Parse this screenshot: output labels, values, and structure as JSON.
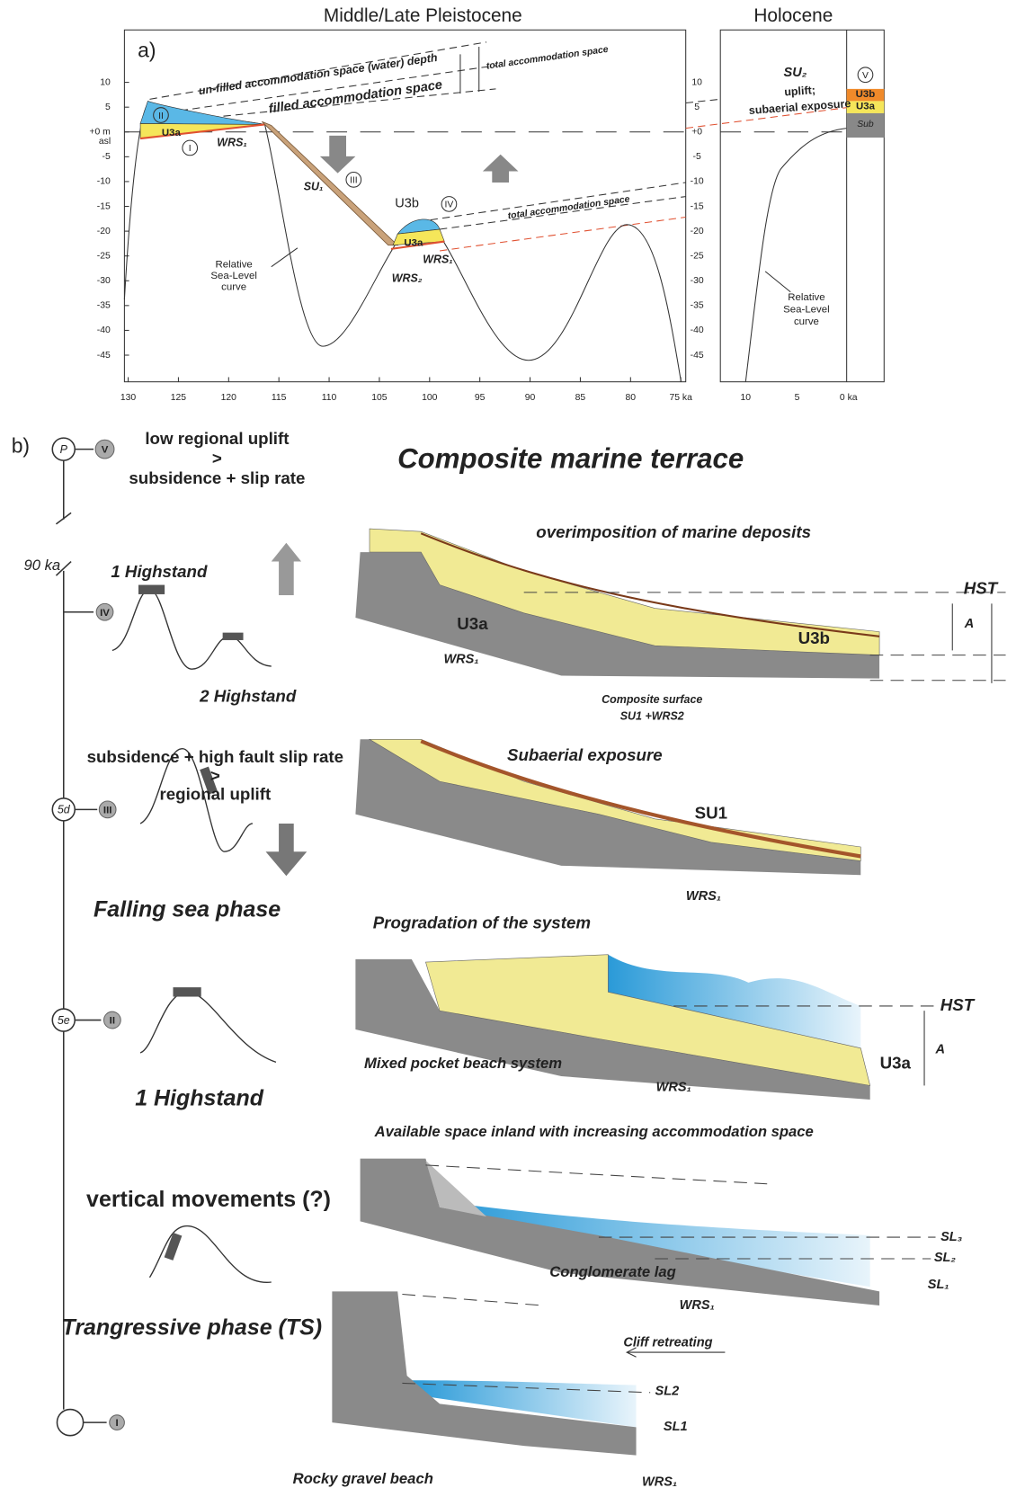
{
  "panel_a": {
    "label": "a)",
    "title_pleistocene": "Middle/Late Pleistocene",
    "title_holocene": "Holocene",
    "y_ticks_left": [
      "10",
      "5",
      "+0 m",
      "-5",
      "-10",
      "-15",
      "-20",
      "-25",
      "-30",
      "-35",
      "-40",
      "-45"
    ],
    "y_unit_left": "asl",
    "y_ticks_right": [
      "10",
      "5",
      "+0",
      "-5",
      "-10",
      "-15",
      "-20",
      "-25",
      "-30",
      "-35",
      "-40",
      "-45"
    ],
    "x_ticks": [
      "130",
      "125",
      "120",
      "115",
      "110",
      "105",
      "100",
      "95",
      "90",
      "85",
      "80",
      "75 ka"
    ],
    "x_ticks_holocene": [
      "10",
      "5",
      "0 ka"
    ],
    "stages": [
      "I",
      "II",
      "III",
      "IV",
      "V"
    ],
    "labels": {
      "unfilled": "un-filled accommodation space (water) depth",
      "filled": "filled accommodation space",
      "total_upper": "total accommodation space",
      "total_lower": "total accommodation space",
      "u3a_high": "U3a",
      "wrs1_high": "WRS₁",
      "su1": "SU₁",
      "u3b": "U3b",
      "u3a_low": "U3a",
      "wrs1_low": "WRS₁",
      "wrs2": "WRS₂",
      "rsl": [
        "Relative",
        "Sea-Level",
        "curve"
      ],
      "su2": "SU₂",
      "uplift": "uplift;",
      "exposure": "subaerial exposure",
      "rsl_holocene": [
        "Relative",
        "Sea-Level",
        "curve"
      ]
    },
    "column": [
      "U3b",
      "U3a",
      "Sub"
    ]
  },
  "panel_b": {
    "label": "b)",
    "title": "Composite marine terrace",
    "timeline": {
      "age": "90 ka",
      "nodes": [
        "P",
        "5d",
        "5e"
      ],
      "stages": [
        "V",
        "IV",
        "III",
        "II",
        "I"
      ]
    },
    "stage_v": {
      "text": [
        "low regional uplift",
        ">",
        "subsidence + slip rate"
      ]
    },
    "stage_iv": {
      "highstand_1": "1 Highstand",
      "highstand_2": "2 Highstand",
      "title": "overimposition of marine deposits",
      "u3a": "U3a",
      "u3b": "U3b",
      "wrs1": "WRS₁",
      "composite": [
        "Composite surface",
        "SU1 +WRS2"
      ],
      "hst": "HST",
      "a": "A"
    },
    "stage_iii": {
      "text": [
        "subsidence + high fault slip rate",
        ">",
        "regional uplift"
      ],
      "title": "Subaerial exposure",
      "su1": "SU1",
      "wrs1": "WRS₁",
      "phase": "Falling sea phase"
    },
    "stage_ii": {
      "title": "Progradation of the system",
      "hst": "HST",
      "a": "A",
      "u3a": "U3a",
      "system": "Mixed pocket beach system",
      "wrs1": "WRS₁",
      "highstand": "1 Highstand"
    },
    "stage_i_upper": {
      "title": "Available space inland with increasing accommodation space",
      "movements": "vertical movements (?)",
      "sl3": "SL₃",
      "sl2": "SL₂",
      "sl1": "SL₁",
      "lag": "Conglomerate lag",
      "wrs1": "WRS₁",
      "phase": "Trangressive phase (TS)"
    },
    "stage_i_lower": {
      "cliff": "Cliff retreating",
      "sl2": "SL2",
      "sl1": "SL1",
      "beach": "Rocky gravel beach",
      "wrs1": "WRS₁"
    }
  }
}
